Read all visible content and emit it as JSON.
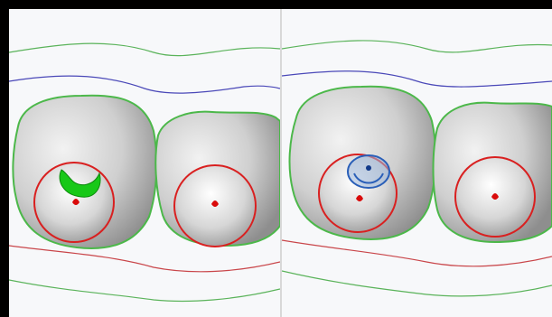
{
  "viewport_left": {
    "label": "",
    "colors": {
      "background": "#f7f8fa",
      "outer_contour": "#5ab35a",
      "blue_contour": "#4a48b8",
      "red_contour": "#c9464a",
      "crown_surface": "#c8c8c8",
      "margin_line": "#4cb84a",
      "hole_ring": "#d92020",
      "marker_red": "#d90a0a",
      "highlight_green": "#18c818"
    },
    "icons": [
      "tooth-crown-left",
      "tooth-crown-right",
      "screw-access-hole-left",
      "screw-access-hole-right"
    ]
  },
  "viewport_right": {
    "label": "",
    "colors": {
      "background": "#f7f8fa",
      "outer_contour": "#5ab35a",
      "blue_contour": "#4a48b8",
      "red_contour": "#c9464a",
      "crown_surface": "#c8c8c8",
      "margin_line": "#4cb84a",
      "hole_ring": "#d92020",
      "marker_red": "#d90a0a",
      "highlight_blue": "#2a5fb8"
    },
    "icons": [
      "tooth-crown-left",
      "tooth-crown-right",
      "screw-access-hole-left",
      "screw-access-hole-right"
    ]
  }
}
